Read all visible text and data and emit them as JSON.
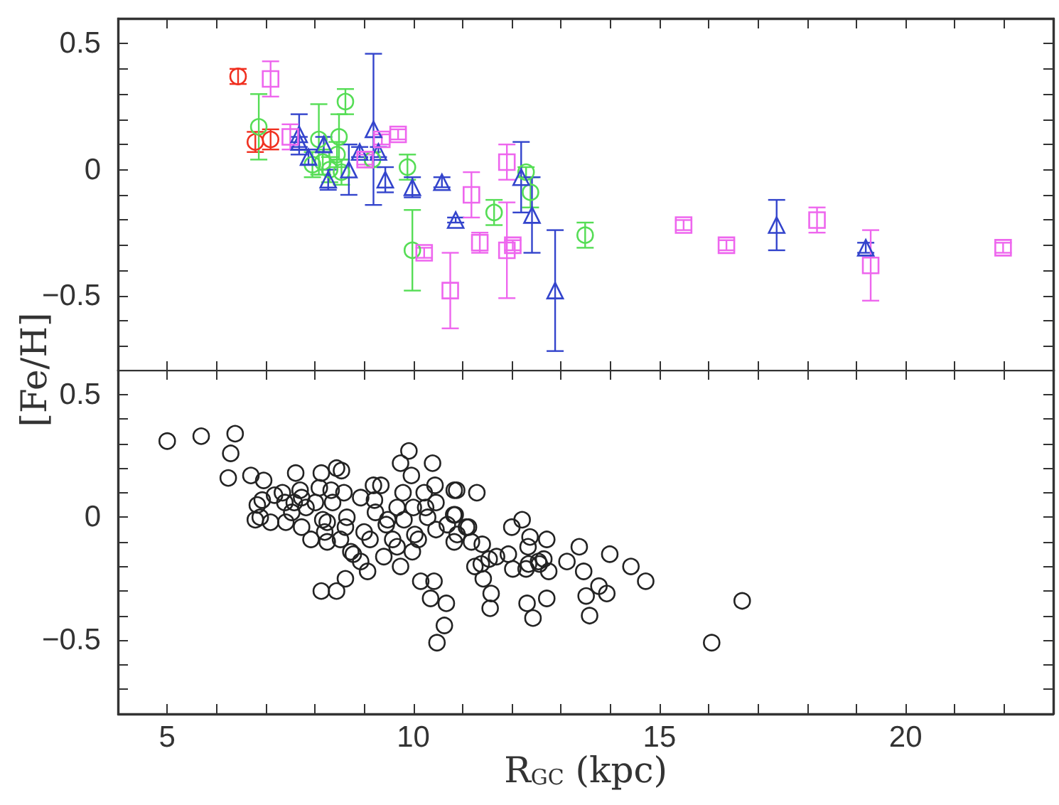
{
  "chart_data": [
    {
      "type": "scatter",
      "ylabel": "[Fe/H]",
      "xlim": [
        4,
        23
      ],
      "ylim": [
        -0.8,
        0.6
      ],
      "tick_labels": "y",
      "grid": false,
      "xticks": [
        5,
        {
          "value": 6,
          "label": null
        },
        {
          "value": 7,
          "label": null
        },
        {
          "value": 8,
          "label": null
        },
        {
          "value": 9,
          "label": null
        },
        10,
        {
          "value": 11,
          "label": null
        },
        {
          "value": 12,
          "label": null
        },
        {
          "value": 13,
          "label": null
        },
        {
          "value": 14,
          "label": null
        },
        15,
        {
          "value": 16,
          "label": null
        },
        {
          "value": 17,
          "label": null
        },
        {
          "value": 18,
          "label": null
        },
        {
          "value": 19,
          "label": null
        },
        20,
        {
          "value": 21,
          "label": null
        },
        {
          "value": 22,
          "label": null
        }
      ],
      "yticks": [
        {
          "value": -0.7,
          "label": null
        },
        {
          "value": -0.6,
          "label": null
        },
        -0.5,
        {
          "value": -0.4,
          "label": null
        },
        {
          "value": -0.3,
          "label": null
        },
        {
          "value": -0.2,
          "label": null
        },
        {
          "value": -0.1,
          "label": null
        },
        0,
        {
          "value": 0.1,
          "label": null
        },
        {
          "value": 0.2,
          "label": null
        },
        {
          "value": 0.3,
          "label": null
        },
        {
          "value": 0.4,
          "label": null
        },
        0.5
      ],
      "series": [
        {
          "color": "#f03020",
          "marker": "circle",
          "x": [
            6.44,
            6.79,
            7.1
          ],
          "values": [
            0.37,
            0.11,
            0.12
          ],
          "errors": [
            0.03,
            0.04,
            0.04
          ]
        },
        {
          "color": "#55dd55",
          "marker": "circle",
          "x": [
            6.86,
            7.95,
            8.08,
            8.16,
            8.3,
            8.49,
            8.45,
            8.54,
            8.62,
            9.17,
            9.88,
            9.98,
            11.64,
            12.29,
            12.38,
            13.49
          ],
          "values": [
            0.17,
            0.02,
            0.12,
            0.03,
            0.0,
            0.13,
            0.06,
            -0.01,
            0.27,
            0.04,
            0.01,
            -0.32,
            -0.17,
            -0.01,
            -0.09,
            -0.26
          ],
          "errors": [
            0.13,
            0.05,
            0.14,
            0.05,
            0.05,
            0.09,
            0.05,
            0.05,
            0.05,
            0.03,
            0.05,
            0.16,
            0.05,
            0.02,
            0.06,
            0.05
          ]
        },
        {
          "color": "#3344cc",
          "marker": "triangle",
          "x": [
            7.68,
            7.68,
            7.87,
            8.18,
            8.27,
            8.69,
            8.91,
            9.19,
            9.29,
            9.43,
            9.98,
            10.58,
            10.86,
            12.19,
            12.41,
            12.88,
            17.38,
            19.19
          ],
          "values": [
            0.14,
            0.11,
            0.05,
            0.1,
            -0.04,
            0.0,
            0.07,
            0.16,
            0.07,
            -0.04,
            -0.07,
            -0.05,
            -0.2,
            -0.03,
            -0.18,
            -0.48,
            -0.22,
            -0.31
          ],
          "errors": [
            0.08,
            0.02,
            0.03,
            0.03,
            0.04,
            0.1,
            0.02,
            0.3,
            0.02,
            0.05,
            0.04,
            0.02,
            0.01,
            0.14,
            0.15,
            0.24,
            0.1,
            0.02
          ]
        },
        {
          "color": "#ee66ee",
          "marker": "square",
          "x": [
            7.1,
            7.5,
            9.02,
            9.36,
            9.69,
            10.22,
            10.75,
            11.18,
            11.35,
            11.9,
            11.9,
            12.02,
            15.49,
            16.36,
            18.2,
            19.29,
            21.98
          ],
          "values": [
            0.36,
            0.13,
            0.04,
            0.12,
            0.14,
            -0.33,
            -0.48,
            -0.1,
            -0.29,
            0.03,
            -0.32,
            -0.3,
            -0.22,
            -0.3,
            -0.2,
            -0.38,
            -0.31
          ],
          "errors": [
            0.07,
            0.05,
            0.02,
            0.02,
            0.02,
            0.02,
            0.15,
            0.09,
            0.04,
            0.07,
            0.19,
            0.02,
            0.02,
            0.02,
            0.05,
            0.14,
            0.02
          ]
        }
      ]
    },
    {
      "type": "scatter",
      "xlabel": "R$_{GC}$ (kpc)",
      "xlim": [
        4,
        23
      ],
      "ylim": [
        -0.8,
        0.6
      ],
      "grid": false,
      "marker": "circle",
      "xticks": [
        5,
        {
          "value": 6,
          "label": null
        },
        {
          "value": 7,
          "label": null
        },
        {
          "value": 8,
          "label": null
        },
        {
          "value": 9,
          "label": null
        },
        10,
        {
          "value": 11,
          "label": null
        },
        {
          "value": 12,
          "label": null
        },
        {
          "value": 13,
          "label": null
        },
        {
          "value": 14,
          "label": null
        },
        15,
        {
          "value": 16,
          "label": null
        },
        {
          "value": 17,
          "label": null
        },
        {
          "value": 18,
          "label": null
        },
        {
          "value": 19,
          "label": null
        },
        20,
        {
          "value": 21,
          "label": null
        },
        {
          "value": 22,
          "label": null
        }
      ],
      "yticks": [
        {
          "value": -0.7,
          "label": null
        },
        {
          "value": -0.6,
          "label": null
        },
        -0.5,
        {
          "value": -0.4,
          "label": null
        },
        {
          "value": -0.3,
          "label": null
        },
        {
          "value": -0.2,
          "label": null
        },
        {
          "value": -0.1,
          "label": null
        },
        0,
        {
          "value": 0.1,
          "label": null
        },
        {
          "value": 0.2,
          "label": null
        },
        {
          "value": 0.3,
          "label": null
        },
        {
          "value": 0.4,
          "label": null
        },
        0.5
      ],
      "series": [
        {
          "color": "#222222",
          "x": [
            5.0,
            5.69,
            6.38,
            6.29,
            6.24,
            6.7,
            6.96,
            6.83,
            6.79,
            6.93,
            7.1,
            6.89,
            7.18,
            7.34,
            7.61,
            7.41,
            7.53,
            7.58,
            7.7,
            7.73,
            7.82,
            7.92,
            8.01,
            8.13,
            8.09,
            8.16,
            8.2,
            8.25,
            8.33,
            8.36,
            8.44,
            8.54,
            8.52,
            8.59,
            8.62,
            8.65,
            8.73,
            8.78,
            8.93,
            8.93,
            9.07,
            9.0,
            9.12,
            9.19,
            9.34,
            9.23,
            9.21,
            9.4,
            9.45,
            9.48,
            9.58,
            9.67,
            9.67,
            9.74,
            9.79,
            9.81,
            9.74,
            9.91,
            9.96,
            10.0,
            9.98,
            10.03,
            10.1,
            10.22,
            10.25,
            10.29,
            10.15,
            10.35,
            10.39,
            10.44,
            10.46,
            10.46,
            10.42,
            10.67,
            10.63,
            10.48,
            10.83,
            10.82,
            10.83,
            10.69,
            11.08,
            8.13,
            8.44,
            8.62,
            8.25,
            7.39,
            7.73,
            10.88,
            11.29,
            10.85,
            10.89,
            11.12,
            11.18,
            11.4,
            11.25,
            11.38,
            11.54,
            11.69,
            11.42,
            11.58,
            11.56,
            11.93,
            12.0,
            12.02,
            12.21,
            12.37,
            12.33,
            12.29,
            12.34,
            12.54,
            12.65,
            12.71,
            12.75,
            12.56,
            12.31,
            12.43,
            12.71,
            13.12,
            13.37,
            13.46,
            13.51,
            13.58,
            13.77,
            13.93,
            13.99,
            14.42,
            14.72,
            16.06,
            16.68
          ],
          "values": [
            0.31,
            0.33,
            0.34,
            0.26,
            0.16,
            0.17,
            0.15,
            0.05,
            -0.01,
            0.07,
            -0.02,
            0.0,
            0.09,
            0.1,
            0.18,
            -0.02,
            0.02,
            0.06,
            0.11,
            -0.04,
            0.04,
            -0.09,
            0.06,
            0.18,
            0.12,
            -0.01,
            -0.06,
            -0.1,
            0.11,
            0.06,
            0.2,
            0.19,
            -0.09,
            0.1,
            -0.04,
            0.0,
            -0.14,
            -0.15,
            -0.18,
            0.08,
            -0.22,
            -0.06,
            -0.09,
            0.13,
            0.13,
            0.02,
            0.07,
            -0.16,
            -0.03,
            -0.01,
            -0.09,
            -0.12,
            0.04,
            0.22,
            0.1,
            -0.01,
            -0.2,
            0.27,
            0.17,
            0.04,
            -0.14,
            -0.07,
            -0.09,
            0.1,
            0.04,
            0.0,
            -0.26,
            -0.33,
            0.22,
            0.13,
            0.06,
            -0.05,
            -0.26,
            -0.35,
            -0.44,
            -0.51,
            0.11,
            0.01,
            -0.1,
            -0.03,
            -0.04,
            -0.3,
            -0.3,
            -0.25,
            -0.02,
            0.06,
            0.08,
            0.11,
            0.1,
            0.01,
            -0.07,
            -0.04,
            -0.1,
            -0.11,
            -0.2,
            -0.19,
            -0.17,
            -0.16,
            -0.25,
            -0.31,
            -0.37,
            -0.15,
            -0.04,
            -0.21,
            -0.01,
            -0.08,
            -0.12,
            -0.21,
            -0.19,
            -0.18,
            -0.17,
            -0.09,
            -0.22,
            -0.19,
            -0.35,
            -0.41,
            -0.33,
            -0.18,
            -0.12,
            -0.22,
            -0.32,
            -0.4,
            -0.28,
            -0.31,
            -0.15,
            -0.2,
            -0.26,
            -0.51,
            -0.34
          ]
        }
      ]
    }
  ]
}
